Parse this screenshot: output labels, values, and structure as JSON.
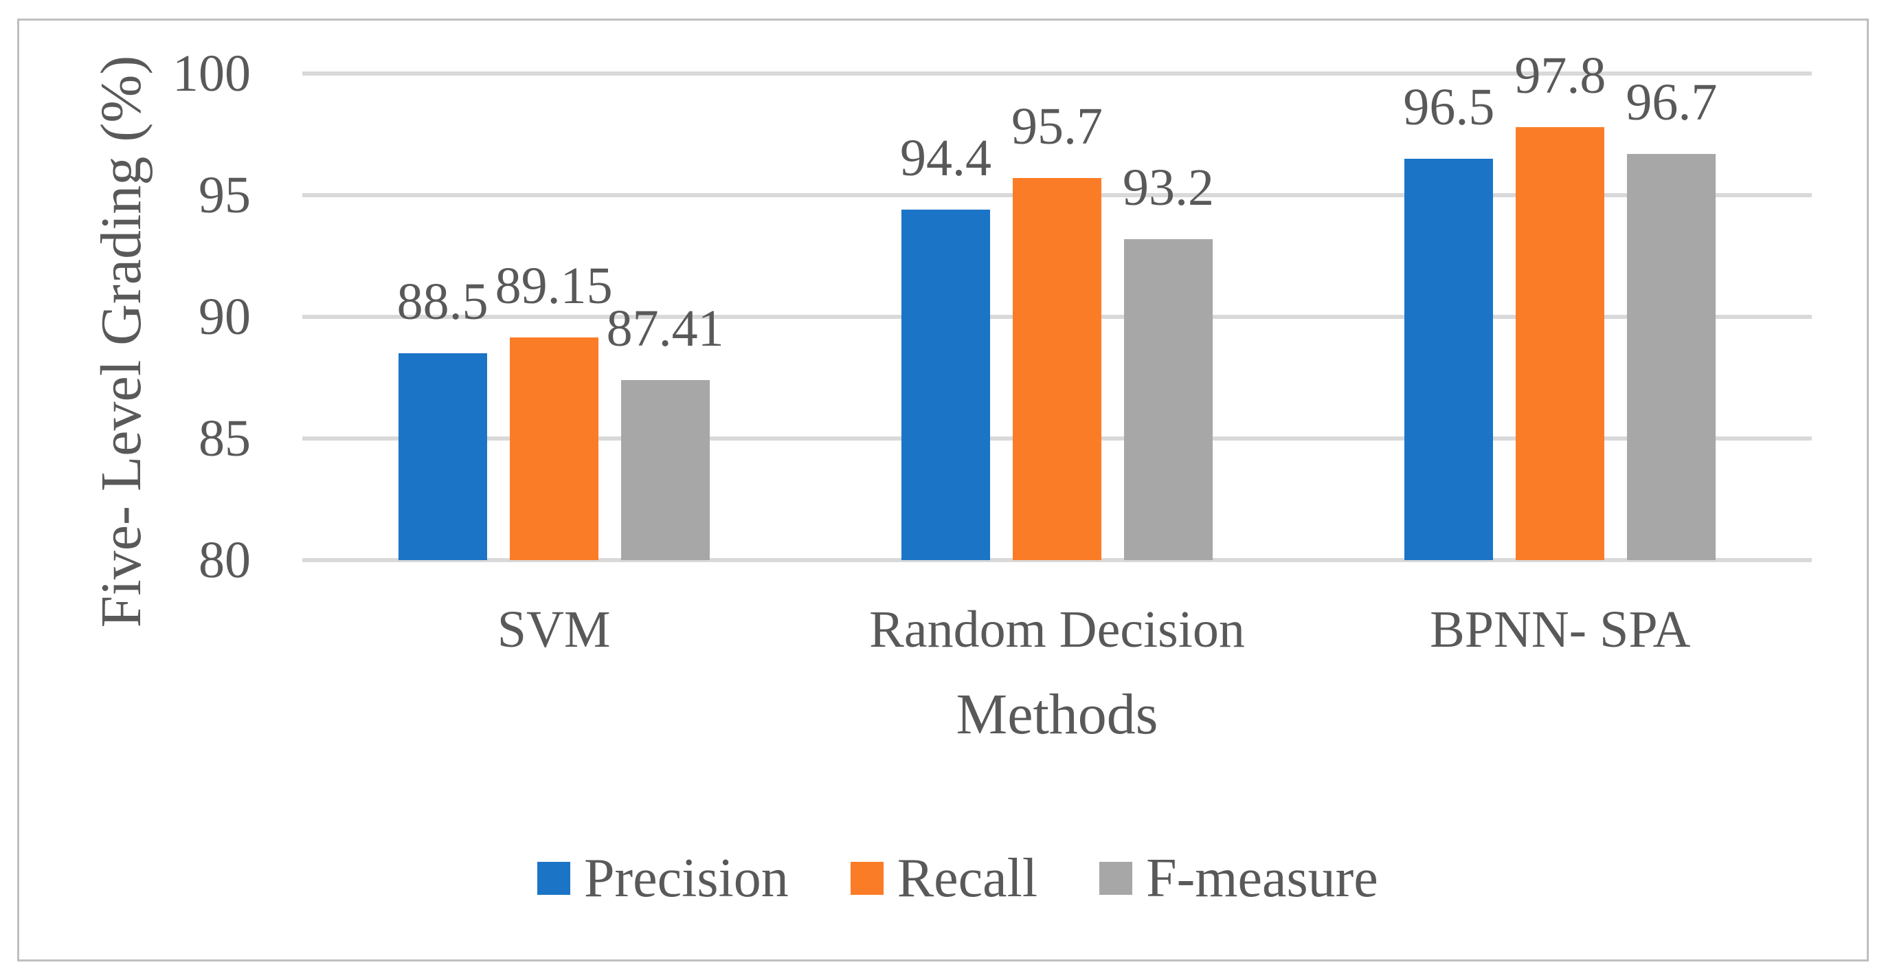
{
  "figure": {
    "background": "#FFFFFF",
    "border_color": "#BFBFBF",
    "text_color": "#595959",
    "gridline_color": "#D9D9D9"
  },
  "chart_data": {
    "type": "bar",
    "title": "",
    "categories": [
      "SVM",
      "Random Decision",
      "BPNN- SPA"
    ],
    "series": [
      {
        "name": "Precision",
        "color": "#1B74C6",
        "values": [
          88.5,
          94.4,
          96.5
        ],
        "labels": [
          "88.5",
          "94.4",
          "96.5"
        ]
      },
      {
        "name": "Recall",
        "color": "#FB7C26",
        "values": [
          89.15,
          95.7,
          97.8
        ],
        "labels": [
          "89.15",
          "95.7",
          "97.8"
        ]
      },
      {
        "name": "F-measure",
        "color": "#A7A7A7",
        "values": [
          87.41,
          93.2,
          96.7
        ],
        "labels": [
          "87.41",
          "93.2",
          "96.7"
        ]
      }
    ],
    "xlabel": "Methods",
    "ylabel": "Five- Level Grading (%)",
    "ylim": [
      80,
      100
    ],
    "yticks": [
      80,
      85,
      90,
      95,
      100
    ],
    "grid": true,
    "legend_position": "bottom"
  }
}
